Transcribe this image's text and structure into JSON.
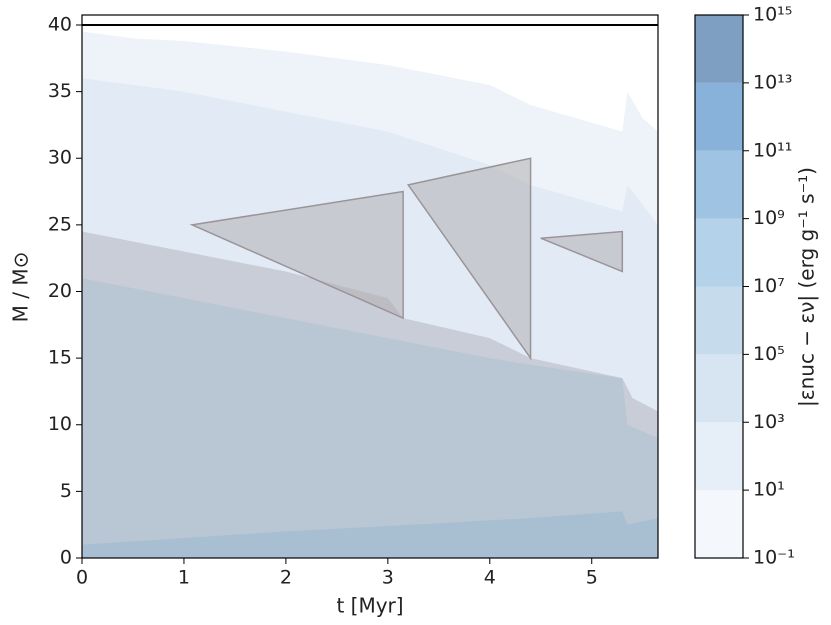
{
  "chart_data": {
    "type": "kippenhahn",
    "xlabel": "t [Myr]",
    "ylabel": "M / M⊙",
    "xlim": [
      0,
      5.65
    ],
    "ylim": [
      0,
      40.75
    ],
    "xticks": [
      0,
      1,
      2,
      3,
      4,
      5
    ],
    "yticks": [
      0,
      5,
      10,
      15,
      20,
      25,
      30,
      35,
      40
    ],
    "areas": [
      {
        "color": "#eef3f9",
        "x": [
          0,
          0.5,
          1,
          2,
          3,
          4,
          4.4,
          5.3,
          5.35,
          5.5,
          5.65,
          5.65,
          0
        ],
        "y": [
          39.5,
          39,
          38.8,
          38,
          37,
          35.5,
          34,
          32,
          35,
          33,
          32,
          0,
          0
        ]
      },
      {
        "color": "#e2ebf5",
        "x": [
          0,
          1,
          2,
          3,
          4,
          4.4,
          5.3,
          5.35,
          5.65,
          5.65,
          0
        ],
        "y": [
          36,
          35,
          33.5,
          32,
          29.5,
          28,
          26,
          28,
          25,
          0,
          0
        ]
      },
      {
        "color": "#c9cdd8",
        "x": [
          0,
          1,
          2,
          3,
          3.15,
          4,
          4.4,
          5.3,
          5.4,
          5.65,
          5.65,
          0
        ],
        "y": [
          24.5,
          23,
          21.5,
          19.5,
          18,
          16.5,
          15,
          13.5,
          12,
          11,
          0,
          0
        ]
      },
      {
        "color": "#b9c7d5",
        "x": [
          0,
          1,
          2,
          3,
          4,
          4.4,
          5.3,
          5.35,
          5.65,
          5.65,
          0
        ],
        "y": [
          21,
          19.5,
          18,
          16.5,
          15,
          14.5,
          13.5,
          10,
          9,
          0,
          0
        ]
      },
      {
        "color": "#a8bfd2",
        "x": [
          0,
          1,
          2,
          3,
          4.4,
          5.3,
          5.35,
          5.65,
          5.65,
          0
        ],
        "y": [
          1,
          1.5,
          2,
          2.4,
          3,
          3.5,
          2.5,
          3,
          0,
          0
        ]
      },
      {
        "color": "#b2aeb2",
        "x": [
          1.08,
          3.15,
          3.15
        ],
        "y": [
          25,
          27.5,
          18
        ]
      },
      {
        "color": "#b2aeb2",
        "x": [
          3.2,
          4.4,
          4.4
        ],
        "y": [
          28,
          30,
          15
        ]
      },
      {
        "color": "#b2aeb2",
        "x": [
          4.5,
          5.3,
          5.3
        ],
        "y": [
          24,
          24.5,
          21.5
        ]
      }
    ],
    "mass_line": {
      "color": "#000000",
      "x": [
        0,
        5.65
      ],
      "y": [
        40,
        40
      ]
    },
    "colorbar": {
      "label": "|εnuc − εν| (erg g⁻¹ s⁻¹)",
      "scale": "log",
      "lim": [
        0.1,
        1000000000000000.0
      ],
      "levels": [
        "#f4f8fc",
        "#e6eef7",
        "#d6e5f1",
        "#c6dced",
        "#b4d2ea",
        "#9fc3e3",
        "#89b2da",
        "#7f9fc2"
      ],
      "ticks": [
        {
          "value": 0.1,
          "label": "10⁻¹"
        },
        {
          "value": 10,
          "label": "10¹"
        },
        {
          "value": 1000,
          "label": "10³"
        },
        {
          "value": 100000,
          "label": "10⁵"
        },
        {
          "value": 10000000,
          "label": "10⁷"
        },
        {
          "value": 1000000000,
          "label": "10⁹"
        },
        {
          "value": 100000000000,
          "label": "10¹¹"
        },
        {
          "value": 10000000000000,
          "label": "10¹³"
        },
        {
          "value": 1000000000000000,
          "label": "10¹⁵"
        }
      ]
    }
  }
}
